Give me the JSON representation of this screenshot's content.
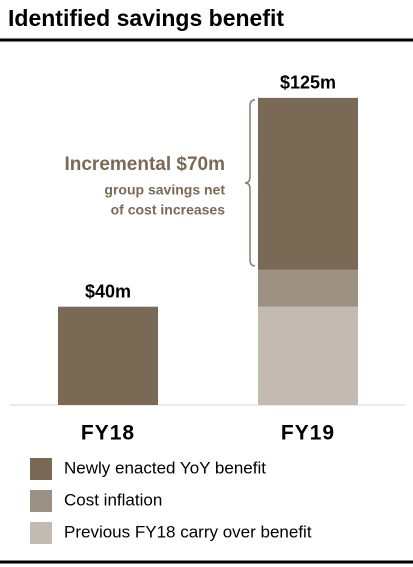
{
  "chart_data": {
    "type": "stacked_bar",
    "title": "Identified savings benefit",
    "categories": [
      "FY18",
      "FY19"
    ],
    "series": [
      {
        "name": "Previous FY18 carry over benefit",
        "color": "#c3bbb1",
        "values": [
          0,
          40
        ]
      },
      {
        "name": "Cost inflation",
        "color": "#9c9182",
        "values": [
          0,
          15
        ]
      },
      {
        "name": "Newly enacted YoY benefit",
        "color": "#7a6a55",
        "values": [
          40,
          70
        ]
      }
    ],
    "totals": {
      "values": [
        40,
        125
      ],
      "value_labels": [
        "$40m",
        "$125m"
      ]
    },
    "annotation": [
      "Incremental $70m",
      "group savings net",
      "of cost increases"
    ],
    "annotation_color": "#7a6a55",
    "ylim": [
      0,
      140
    ]
  }
}
